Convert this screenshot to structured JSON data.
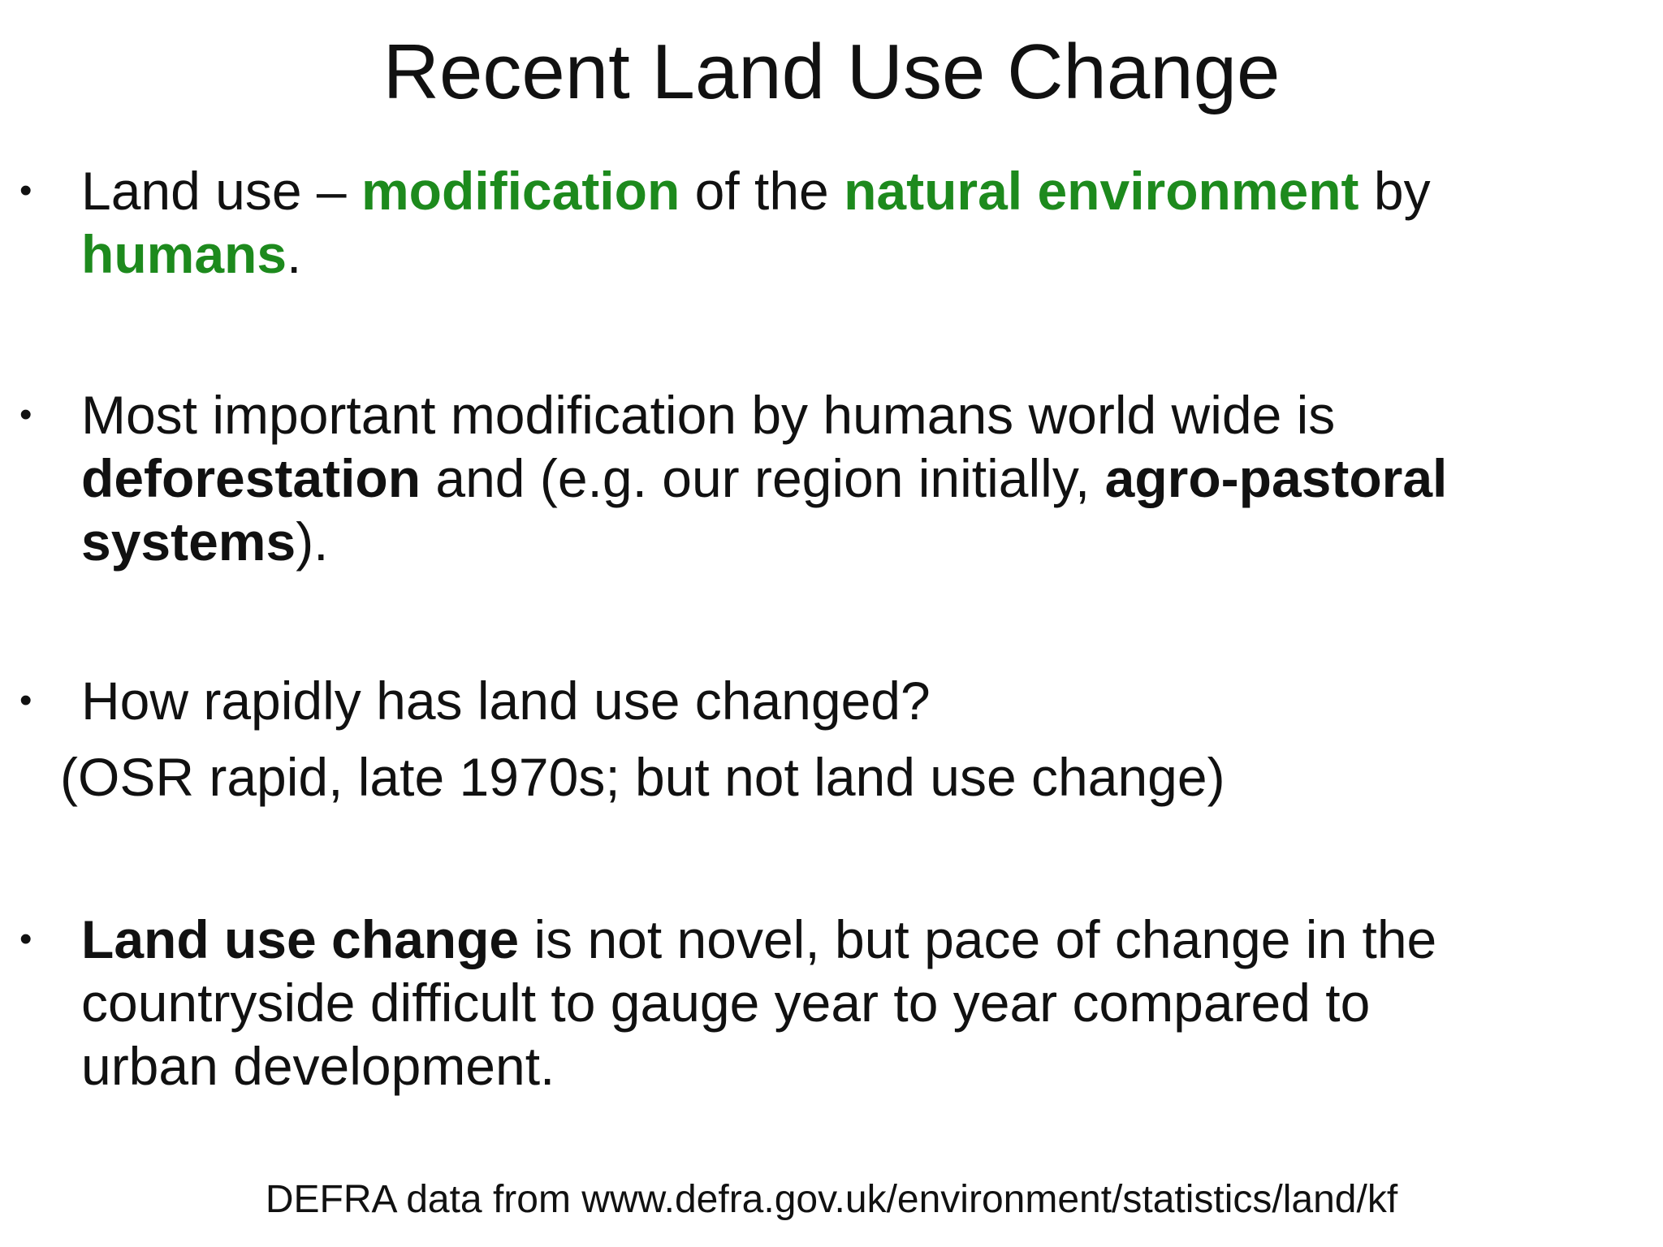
{
  "slide": {
    "title": "Recent Land Use Change",
    "bullet_symbol": "•",
    "bullets": [
      {
        "lines": [
          [
            {
              "text": "Land use – ",
              "style": "normal"
            },
            {
              "text": "modification",
              "style": "green"
            },
            {
              "text": " of the ",
              "style": "normal"
            },
            {
              "text": "natural environment",
              "style": "green"
            },
            {
              "text": " by",
              "style": "normal"
            }
          ],
          [
            {
              "text": "humans",
              "style": "green"
            },
            {
              "text": ".",
              "style": "normal"
            }
          ]
        ]
      },
      {
        "lines": [
          [
            {
              "text": "Most important modification by humans world wide is",
              "style": "normal"
            }
          ],
          [
            {
              "text": "deforestation",
              "style": "bold"
            },
            {
              "text": " and (e.g. our region initially, ",
              "style": "normal"
            },
            {
              "text": "agro-pastoral",
              "style": "bold"
            }
          ],
          [
            {
              "text": "systems",
              "style": "bold"
            },
            {
              "text": ").",
              "style": "normal"
            }
          ]
        ]
      },
      {
        "lines": [
          [
            {
              "text": "How rapidly has land use changed?",
              "style": "normal"
            }
          ]
        ]
      },
      {
        "lines": [
          [
            {
              "text": "Land use change",
              "style": "bold"
            },
            {
              "text": " is not novel, but pace of change in the",
              "style": "normal"
            }
          ],
          [
            {
              "text": "countryside difficult to gauge year to year compared to",
              "style": "normal"
            }
          ],
          [
            {
              "text": "urban development.",
              "style": "normal"
            }
          ]
        ]
      }
    ],
    "note": "(OSR rapid, late 1970s; but not land use change)",
    "footer": "DEFRA data from www.defra.gov.uk/environment/statistics/land/kf"
  }
}
